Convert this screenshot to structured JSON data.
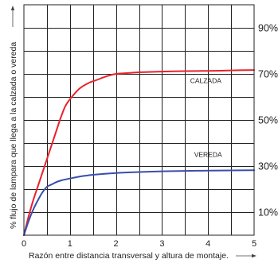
{
  "chart_data": {
    "type": "line",
    "title": "",
    "xlabel": "Razón entre distancia transversal y altura de montaje.",
    "ylabel": "% flujo de lampara que llega a la calzada o vereda",
    "xlim": [
      0,
      5
    ],
    "ylim": [
      0,
      100
    ],
    "x_ticks": [
      "0",
      "1",
      "2",
      "3",
      "4",
      "5"
    ],
    "y_ticks_right": [
      {
        "value": 10,
        "label": "10%"
      },
      {
        "value": 30,
        "label": "30%"
      },
      {
        "value": 50,
        "label": "50%"
      },
      {
        "value": 70,
        "label": "70%"
      },
      {
        "value": 90,
        "label": "90%"
      }
    ],
    "grid": true,
    "x_grid_step": 0.5,
    "y_grid_step": 10,
    "series": [
      {
        "name": "CALZADA",
        "color": "#e8212b",
        "x": [
          0,
          0.1,
          0.2,
          0.3,
          0.4,
          0.5,
          0.6,
          0.7,
          0.8,
          0.9,
          1.0,
          1.2,
          1.4,
          1.6,
          1.8,
          2.0,
          2.2,
          2.5,
          3.0,
          3.5,
          4.0,
          4.5,
          5.0
        ],
        "values": [
          0,
          8,
          15,
          21,
          27,
          33,
          39,
          45,
          51,
          56,
          59,
          63.5,
          66,
          67.5,
          69,
          70,
          70.3,
          70.7,
          71,
          71.2,
          71.3,
          71.5,
          71.7
        ]
      },
      {
        "name": "VEREDA",
        "color": "#3a4eab",
        "x": [
          0,
          0.1,
          0.2,
          0.3,
          0.4,
          0.5,
          0.6,
          0.7,
          0.8,
          0.9,
          1.0,
          1.2,
          1.5,
          2.0,
          2.5,
          3.0,
          3.5,
          4.0,
          4.5,
          5.0
        ],
        "values": [
          0,
          6,
          11,
          15,
          18.5,
          21,
          22,
          23,
          23.7,
          24.2,
          24.6,
          25.4,
          26.2,
          27,
          27.4,
          27.7,
          27.9,
          28,
          28.1,
          28.2
        ]
      }
    ],
    "annotations": [
      {
        "text": "CALZADA",
        "x": 3.95,
        "y": 66
      },
      {
        "text": "VEREDA",
        "x": 4.0,
        "y": 34
      }
    ]
  }
}
